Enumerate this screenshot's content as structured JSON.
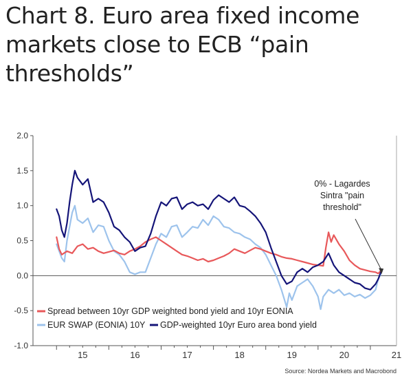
{
  "title": "Chart 8. Euro area fixed income markets close to ECB “pain thresholds”",
  "chart_data": {
    "type": "line",
    "x_range": [
      2014.55,
      2021.5
    ],
    "ylim": [
      -1.0,
      2.0
    ],
    "y_ticks": [
      {
        "value": 2.0,
        "label": "2.0"
      },
      {
        "value": 1.5,
        "label": "1.5"
      },
      {
        "value": 1.0,
        "label": "1.0"
      },
      {
        "value": 0.5,
        "label": "0.5"
      },
      {
        "value": 0.0,
        "label": "0.0"
      },
      {
        "value": -0.5,
        "label": "-0.5"
      },
      {
        "value": -1.0,
        "label": "-1.0"
      }
    ],
    "x_ticks": [
      {
        "value": 2015.5,
        "label": "15"
      },
      {
        "value": 2016.5,
        "label": "16"
      },
      {
        "value": 2017.5,
        "label": "17"
      },
      {
        "value": 2018.5,
        "label": "18"
      },
      {
        "value": 2019.5,
        "label": "19"
      },
      {
        "value": 2020.5,
        "label": "20"
      },
      {
        "value": 2021.5,
        "label": "21"
      }
    ],
    "grid": false,
    "zero_line": true,
    "legend_position": "bottom-left",
    "series": [
      {
        "name": "Spread between 10yr GDP weighted bond yield and 10yr EONIA",
        "color": "#e8585a",
        "points": [
          [
            2015.0,
            0.55
          ],
          [
            2015.05,
            0.38
          ],
          [
            2015.1,
            0.3
          ],
          [
            2015.2,
            0.35
          ],
          [
            2015.3,
            0.32
          ],
          [
            2015.4,
            0.42
          ],
          [
            2015.5,
            0.45
          ],
          [
            2015.6,
            0.38
          ],
          [
            2015.7,
            0.4
          ],
          [
            2015.8,
            0.35
          ],
          [
            2015.9,
            0.32
          ],
          [
            2016.0,
            0.34
          ],
          [
            2016.1,
            0.36
          ],
          [
            2016.2,
            0.32
          ],
          [
            2016.3,
            0.3
          ],
          [
            2016.4,
            0.35
          ],
          [
            2016.5,
            0.38
          ],
          [
            2016.6,
            0.42
          ],
          [
            2016.7,
            0.48
          ],
          [
            2016.8,
            0.52
          ],
          [
            2016.9,
            0.55
          ],
          [
            2017.0,
            0.5
          ],
          [
            2017.1,
            0.45
          ],
          [
            2017.2,
            0.4
          ],
          [
            2017.3,
            0.35
          ],
          [
            2017.4,
            0.3
          ],
          [
            2017.5,
            0.28
          ],
          [
            2017.6,
            0.25
          ],
          [
            2017.7,
            0.22
          ],
          [
            2017.8,
            0.24
          ],
          [
            2017.9,
            0.2
          ],
          [
            2018.0,
            0.22
          ],
          [
            2018.1,
            0.25
          ],
          [
            2018.2,
            0.28
          ],
          [
            2018.3,
            0.32
          ],
          [
            2018.4,
            0.38
          ],
          [
            2018.5,
            0.35
          ],
          [
            2018.6,
            0.32
          ],
          [
            2018.7,
            0.36
          ],
          [
            2018.8,
            0.4
          ],
          [
            2018.9,
            0.38
          ],
          [
            2019.0,
            0.35
          ],
          [
            2019.1,
            0.32
          ],
          [
            2019.2,
            0.3
          ],
          [
            2019.3,
            0.27
          ],
          [
            2019.4,
            0.25
          ],
          [
            2019.5,
            0.24
          ],
          [
            2019.6,
            0.22
          ],
          [
            2019.7,
            0.2
          ],
          [
            2019.8,
            0.18
          ],
          [
            2019.9,
            0.16
          ],
          [
            2020.0,
            0.15
          ],
          [
            2020.1,
            0.14
          ],
          [
            2020.15,
            0.4
          ],
          [
            2020.2,
            0.62
          ],
          [
            2020.25,
            0.48
          ],
          [
            2020.3,
            0.58
          ],
          [
            2020.4,
            0.45
          ],
          [
            2020.5,
            0.35
          ],
          [
            2020.6,
            0.22
          ],
          [
            2020.7,
            0.15
          ],
          [
            2020.8,
            0.1
          ],
          [
            2020.9,
            0.08
          ],
          [
            2021.0,
            0.06
          ],
          [
            2021.1,
            0.05
          ],
          [
            2021.15,
            0.03
          ],
          [
            2021.2,
            0.07
          ]
        ]
      },
      {
        "name": "EUR SWAP (EONIA) 10Y",
        "color": "#9dc3ec",
        "points": [
          [
            2015.0,
            0.45
          ],
          [
            2015.05,
            0.35
          ],
          [
            2015.1,
            0.25
          ],
          [
            2015.15,
            0.2
          ],
          [
            2015.2,
            0.5
          ],
          [
            2015.3,
            0.9
          ],
          [
            2015.35,
            1.0
          ],
          [
            2015.4,
            0.8
          ],
          [
            2015.5,
            0.75
          ],
          [
            2015.6,
            0.82
          ],
          [
            2015.7,
            0.62
          ],
          [
            2015.8,
            0.72
          ],
          [
            2015.9,
            0.7
          ],
          [
            2016.0,
            0.5
          ],
          [
            2016.1,
            0.35
          ],
          [
            2016.2,
            0.3
          ],
          [
            2016.3,
            0.2
          ],
          [
            2016.4,
            0.05
          ],
          [
            2016.5,
            0.02
          ],
          [
            2016.6,
            0.05
          ],
          [
            2016.7,
            0.05
          ],
          [
            2016.8,
            0.25
          ],
          [
            2016.9,
            0.45
          ],
          [
            2017.0,
            0.6
          ],
          [
            2017.1,
            0.55
          ],
          [
            2017.2,
            0.7
          ],
          [
            2017.3,
            0.72
          ],
          [
            2017.4,
            0.55
          ],
          [
            2017.5,
            0.62
          ],
          [
            2017.6,
            0.7
          ],
          [
            2017.7,
            0.68
          ],
          [
            2017.8,
            0.8
          ],
          [
            2017.9,
            0.72
          ],
          [
            2018.0,
            0.85
          ],
          [
            2018.1,
            0.8
          ],
          [
            2018.2,
            0.7
          ],
          [
            2018.3,
            0.68
          ],
          [
            2018.4,
            0.62
          ],
          [
            2018.5,
            0.6
          ],
          [
            2018.6,
            0.55
          ],
          [
            2018.7,
            0.52
          ],
          [
            2018.8,
            0.45
          ],
          [
            2018.9,
            0.4
          ],
          [
            2019.0,
            0.3
          ],
          [
            2019.1,
            0.15
          ],
          [
            2019.2,
            0.0
          ],
          [
            2019.3,
            -0.2
          ],
          [
            2019.4,
            -0.45
          ],
          [
            2019.45,
            -0.25
          ],
          [
            2019.5,
            -0.35
          ],
          [
            2019.6,
            -0.15
          ],
          [
            2019.7,
            -0.1
          ],
          [
            2019.8,
            -0.05
          ],
          [
            2019.9,
            -0.15
          ],
          [
            2020.0,
            -0.3
          ],
          [
            2020.05,
            -0.48
          ],
          [
            2020.1,
            -0.3
          ],
          [
            2020.2,
            -0.2
          ],
          [
            2020.3,
            -0.25
          ],
          [
            2020.4,
            -0.2
          ],
          [
            2020.5,
            -0.28
          ],
          [
            2020.6,
            -0.25
          ],
          [
            2020.7,
            -0.3
          ],
          [
            2020.8,
            -0.27
          ],
          [
            2020.9,
            -0.32
          ],
          [
            2021.0,
            -0.28
          ],
          [
            2021.1,
            -0.2
          ],
          [
            2021.15,
            -0.05
          ],
          [
            2021.2,
            0.02
          ]
        ]
      },
      {
        "name": "GDP-weighted 10yr Euro area bond yield",
        "color": "#141478",
        "points": [
          [
            2015.0,
            0.95
          ],
          [
            2015.05,
            0.85
          ],
          [
            2015.1,
            0.65
          ],
          [
            2015.15,
            0.55
          ],
          [
            2015.2,
            0.75
          ],
          [
            2015.25,
            1.05
          ],
          [
            2015.3,
            1.3
          ],
          [
            2015.35,
            1.5
          ],
          [
            2015.4,
            1.4
          ],
          [
            2015.5,
            1.3
          ],
          [
            2015.6,
            1.38
          ],
          [
            2015.7,
            1.05
          ],
          [
            2015.8,
            1.1
          ],
          [
            2015.9,
            1.05
          ],
          [
            2016.0,
            0.9
          ],
          [
            2016.1,
            0.7
          ],
          [
            2016.2,
            0.65
          ],
          [
            2016.3,
            0.55
          ],
          [
            2016.4,
            0.48
          ],
          [
            2016.5,
            0.35
          ],
          [
            2016.6,
            0.4
          ],
          [
            2016.7,
            0.42
          ],
          [
            2016.8,
            0.6
          ],
          [
            2016.9,
            0.85
          ],
          [
            2017.0,
            1.05
          ],
          [
            2017.1,
            1.0
          ],
          [
            2017.2,
            1.1
          ],
          [
            2017.3,
            1.12
          ],
          [
            2017.4,
            0.95
          ],
          [
            2017.5,
            1.02
          ],
          [
            2017.6,
            1.05
          ],
          [
            2017.7,
            1.0
          ],
          [
            2017.8,
            1.02
          ],
          [
            2017.9,
            0.95
          ],
          [
            2018.0,
            1.08
          ],
          [
            2018.1,
            1.15
          ],
          [
            2018.2,
            1.1
          ],
          [
            2018.3,
            1.05
          ],
          [
            2018.4,
            1.12
          ],
          [
            2018.5,
            1.0
          ],
          [
            2018.6,
            0.98
          ],
          [
            2018.7,
            0.92
          ],
          [
            2018.8,
            0.85
          ],
          [
            2018.9,
            0.75
          ],
          [
            2019.0,
            0.62
          ],
          [
            2019.1,
            0.4
          ],
          [
            2019.2,
            0.2
          ],
          [
            2019.3,
            0.0
          ],
          [
            2019.4,
            -0.12
          ],
          [
            2019.5,
            -0.08
          ],
          [
            2019.6,
            0.05
          ],
          [
            2019.7,
            0.1
          ],
          [
            2019.8,
            0.05
          ],
          [
            2019.9,
            0.12
          ],
          [
            2020.0,
            0.15
          ],
          [
            2020.1,
            0.2
          ],
          [
            2020.2,
            0.32
          ],
          [
            2020.3,
            0.15
          ],
          [
            2020.4,
            0.05
          ],
          [
            2020.5,
            0.0
          ],
          [
            2020.6,
            -0.05
          ],
          [
            2020.7,
            -0.1
          ],
          [
            2020.8,
            -0.12
          ],
          [
            2020.9,
            -0.18
          ],
          [
            2021.0,
            -0.2
          ],
          [
            2021.1,
            -0.12
          ],
          [
            2021.15,
            -0.05
          ],
          [
            2021.2,
            0.05
          ]
        ]
      }
    ],
    "annotation": {
      "lines": [
        "0% - Lagardes",
        "Sintra \"pain",
        "threshold\""
      ],
      "x": 2021.2,
      "y": 0.02
    },
    "source": "Source: Nordea Markets and Macrobond"
  }
}
